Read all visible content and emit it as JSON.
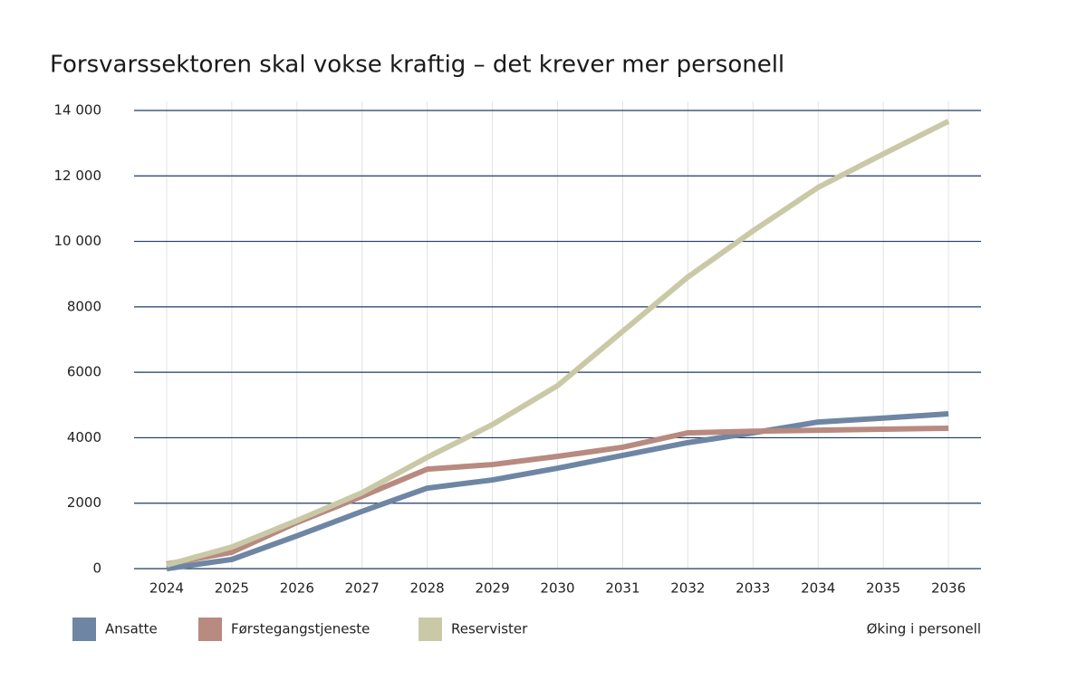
{
  "chart_data": {
    "type": "line",
    "title": "Forsvarssektoren skal vokse kraftig – det krever mer personell",
    "annotation": "Øking i personell",
    "categories": [
      "2024",
      "2025",
      "2026",
      "2027",
      "2028",
      "2029",
      "2030",
      "2031",
      "2032",
      "2033",
      "2034",
      "2035",
      "2036"
    ],
    "series": [
      {
        "name": "Ansatte",
        "color": "#6e86a4",
        "values": [
          0,
          280,
          1000,
          1750,
          2460,
          2710,
          3070,
          3460,
          3850,
          4150,
          4480,
          4600,
          4730
        ]
      },
      {
        "name": "Førstegangstjeneste",
        "color": "#b88a80",
        "values": [
          140,
          500,
          1410,
          2210,
          3040,
          3180,
          3430,
          3710,
          4150,
          4200,
          4230,
          4260,
          4290
        ]
      },
      {
        "name": "Reservister",
        "color": "#cac9a7",
        "values": [
          110,
          660,
          1470,
          2320,
          3400,
          4400,
          5590,
          7250,
          8910,
          10320,
          11650,
          12670,
          13670
        ]
      }
    ],
    "ylim": [
      0,
      14000
    ],
    "yticks": [
      0,
      2000,
      4000,
      6000,
      8000,
      {
        "value": 10000,
        "label": "10 000"
      },
      {
        "value": 12000,
        "label": "12 000"
      },
      {
        "value": 14000,
        "label": "14 000"
      }
    ],
    "grid": true
  }
}
